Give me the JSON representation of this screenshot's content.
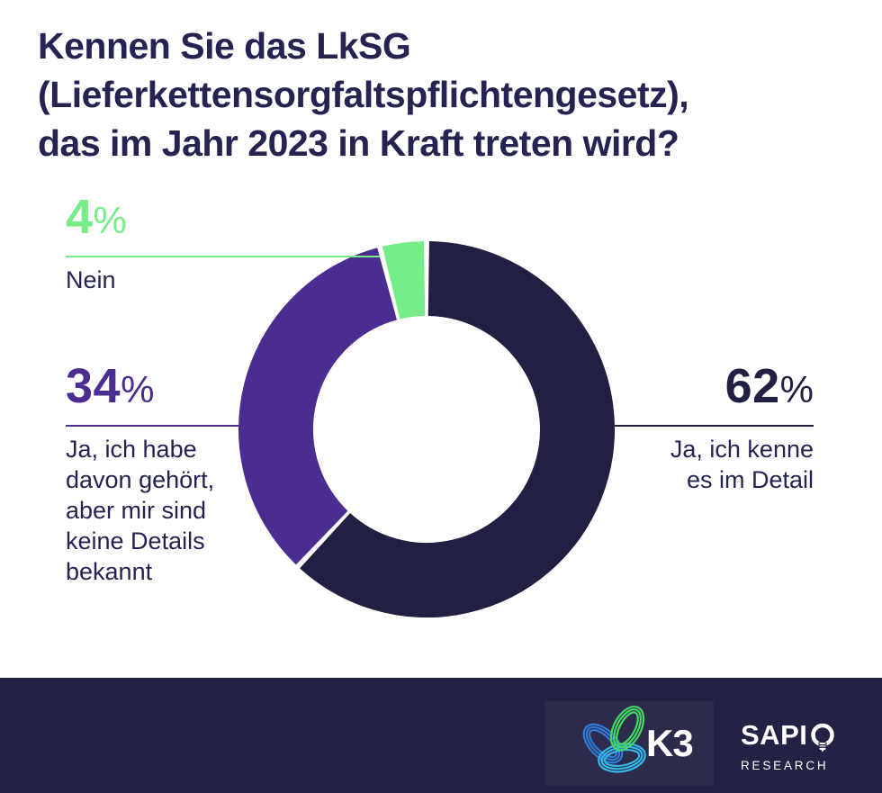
{
  "header": {
    "title": "Kennen Sie das LkSG\n(Lieferkettensorgfaltspflichtengesetz),\ndas im Jahr 2023 in Kraft treten wird?"
  },
  "chart_data": {
    "type": "pie",
    "subtype": "donut",
    "title": "Kennen Sie das LkSG (Lieferkettensorgfaltspflichtengesetz), das im Jahr 2023 in Kraft treten wird?",
    "categories": [
      "Ja, ich kenne es im Detail",
      "Ja, ich habe davon gehört, aber mir sind keine Details bekannt",
      "Nein"
    ],
    "values": [
      62,
      34,
      4
    ],
    "unit": "%",
    "start_angle_deg": 0,
    "direction": "clockwise",
    "donut_hole_ratio": 0.6,
    "legend_position": "callout-labels",
    "segments": [
      {
        "label": "Ja, ich kenne es im Detail",
        "value": 62,
        "color": "#211f42",
        "callout_value": "62",
        "callout_label": "Ja, ich kenne\nes im Detail",
        "callout_side": "right"
      },
      {
        "label": "Ja, ich habe davon gehört, aber mir sind keine Details bekannt",
        "value": 34,
        "color": "#4b2c90",
        "callout_value": "34",
        "callout_label": "Ja, ich habe\ndavon gehört,\naber mir sind\nkeine Details\nbekannt",
        "callout_side": "left"
      },
      {
        "label": "Nein",
        "value": 4,
        "color": "#76ed88",
        "callout_value": "4",
        "callout_label": "Nein",
        "callout_side": "top-left"
      }
    ]
  },
  "footer": {
    "k3_text": "K3",
    "sapio_text": "SAPI",
    "sapio_sub": "RESEARCH"
  },
  "colors": {
    "background": "#ffffff",
    "heading_text": "#242351",
    "answer_text": "#242351",
    "navy": "#211f42",
    "purple": "#4b2c90",
    "green": "#76ed88",
    "footer_background": "#242244",
    "k3_blue": "#2e7bd5",
    "k3_green": "#42d963",
    "k3_teal": "#33b7e6",
    "logo_text": "#ffffff"
  }
}
